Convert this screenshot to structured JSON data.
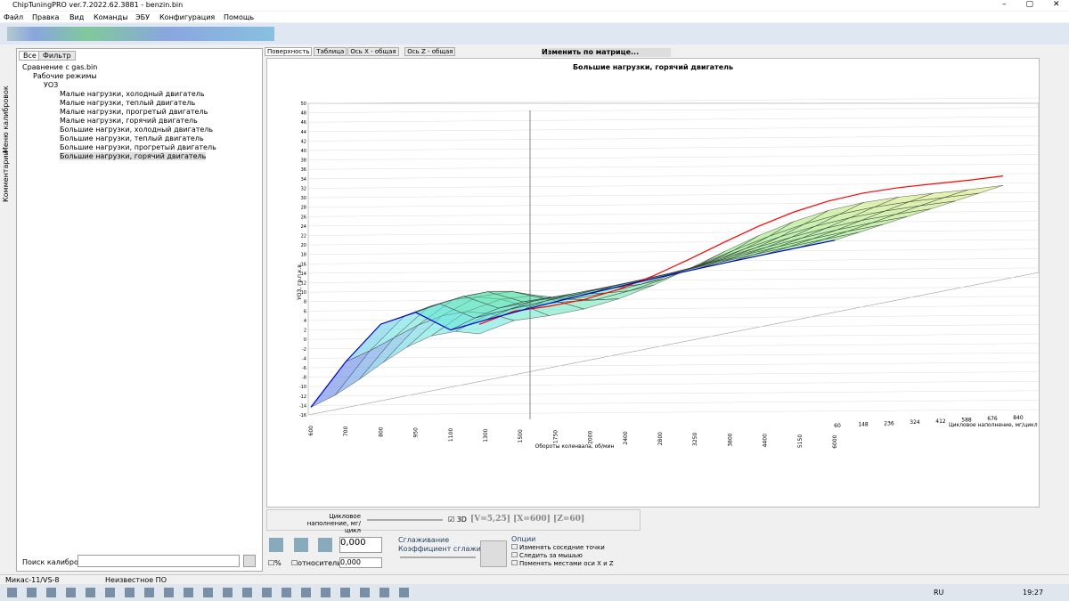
{
  "window": {
    "title": "ChipTuningPRO ver.7.2022.62.3881 - benzin.bin"
  },
  "menu": [
    "Файл",
    "Правка",
    "Вид",
    "Команды",
    "ЭБУ",
    "Конфигурация",
    "Помощь"
  ],
  "side_tabs": [
    "Меню калибровок",
    "Комментарии"
  ],
  "left_tabs": [
    "Все",
    "Фильтр"
  ],
  "tree": {
    "root": "Сравнение с gas.bin",
    "group": "Рабочие режимы",
    "node": "УОЗ",
    "items": [
      "Малые нагрузки, холодный двигатель",
      "Малые нагрузки, теплый двигатель",
      "Малые нагрузки, прогретый двигатель",
      "Малые нагрузки, горячий двигатель",
      "Большие нагрузки, холодный двигатель",
      "Большие нагрузки, теплый двигатель",
      "Большие нагрузки, прогретый двигатель",
      "Большие нагрузки, горячий двигатель"
    ]
  },
  "search_label": "Поиск калибровки",
  "right_tabs": [
    "Поверхность",
    "Таблица",
    "Ось X - общая",
    "Ось Z - общая"
  ],
  "dropdown": "Изменить по матрице...",
  "chart": {
    "title": "Большие нагрузки, горячий двигатель",
    "y_label": "УОЗ, гр.п.к.в.",
    "yticks": [
      50,
      48,
      46,
      44,
      42,
      40,
      38,
      36,
      34,
      32,
      30,
      28,
      26,
      24,
      22,
      20,
      18,
      16,
      14,
      12,
      10,
      8,
      6,
      4,
      2,
      0,
      -2,
      -4,
      -6,
      -8,
      -10,
      -12,
      -14,
      -16
    ],
    "x_label": "Обороты коленвала, об/мин",
    "xticks": [
      600,
      700,
      800,
      950,
      1100,
      1300,
      1500,
      1750,
      2000,
      2400,
      2800,
      3250,
      3800,
      4400,
      5150,
      6000
    ],
    "z_label": "Цикловое наполнение, мг/цикл",
    "zticks": [
      60,
      148,
      236,
      324,
      412,
      588,
      676,
      840
    ]
  },
  "bottom": {
    "slider_label": "Цикловое наполнение, мг/цикл",
    "check_3d": "3D",
    "status": "[V=5,25] [X=600] [Z=60]",
    "value1": "0,000",
    "percent": "%",
    "relative": "относительно",
    "value2": "0,000",
    "smoothing": "Сглаживание",
    "smoothing_coef": "Коэффициент сглаживания",
    "options_title": "Опции",
    "options": [
      "Изменять соседние точки",
      "Следить за мышью",
      "Поменять местами оси X и Z"
    ]
  },
  "statusbar": [
    "Микас-11/VS-8",
    "Неизвестное ПО"
  ],
  "taskbar": {
    "lang": "RU",
    "time": "19:27"
  }
}
